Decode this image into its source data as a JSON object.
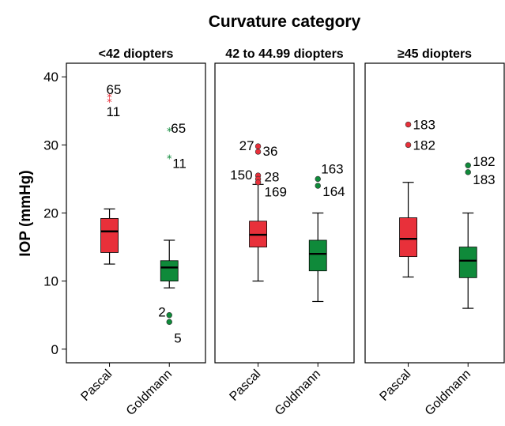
{
  "chart_data": {
    "type": "boxplot",
    "title": "Curvature category",
    "ylabel": "IOP (mmHg)",
    "ylim": [
      -2,
      42
    ],
    "yticks": [
      0,
      10,
      20,
      30,
      40
    ],
    "categories": [
      "Pascal",
      "Goldmann"
    ],
    "colors": {
      "Pascal": "#e8303a",
      "Goldmann": "#0f8a3a"
    },
    "grid": false,
    "panels": [
      {
        "label": "<42 diopters",
        "boxes": [
          {
            "category": "Pascal",
            "whisker_low": 12.5,
            "q1": 14.2,
            "median": 17.3,
            "q3": 19.2,
            "whisker_high": 20.6,
            "outliers": [
              {
                "value": 37.0,
                "label": "65",
                "marker": "star"
              },
              {
                "value": 36.3,
                "label": "11",
                "marker": "star"
              }
            ]
          },
          {
            "category": "Goldmann",
            "whisker_low": 9.0,
            "q1": 10.0,
            "median": 12.0,
            "q3": 13.0,
            "whisker_high": 16.0,
            "outliers": [
              {
                "value": 32.0,
                "label": "65",
                "marker": "star"
              },
              {
                "value": 28.0,
                "label": "11",
                "marker": "star"
              },
              {
                "value": 5.0,
                "label": "2",
                "marker": "circle"
              },
              {
                "value": 4.0,
                "label": "5",
                "marker": "circle"
              }
            ]
          }
        ]
      },
      {
        "label": "42 to 44.99 diopters",
        "boxes": [
          {
            "category": "Pascal",
            "whisker_low": 10.0,
            "q1": 15.0,
            "median": 16.8,
            "q3": 18.8,
            "whisker_high": 24.2,
            "outliers": [
              {
                "value": 29.8,
                "label": "27",
                "marker": "circle"
              },
              {
                "value": 29.0,
                "label": "36",
                "marker": "circle"
              },
              {
                "value": 25.5,
                "label": "150",
                "marker": "circle"
              },
              {
                "value": 25.0,
                "label": "28",
                "marker": "circle"
              },
              {
                "value": 24.5,
                "label": "169",
                "marker": "circle"
              }
            ]
          },
          {
            "category": "Goldmann",
            "whisker_low": 7.0,
            "q1": 11.5,
            "median": 14.0,
            "q3": 16.0,
            "whisker_high": 20.0,
            "outliers": [
              {
                "value": 25.0,
                "label": "163",
                "marker": "circle"
              },
              {
                "value": 24.0,
                "label": "164",
                "marker": "circle"
              }
            ]
          }
        ]
      },
      {
        "label": "≥45 diopters",
        "boxes": [
          {
            "category": "Pascal",
            "whisker_low": 10.6,
            "q1": 13.6,
            "median": 16.2,
            "q3": 19.3,
            "whisker_high": 24.5,
            "outliers": [
              {
                "value": 33.0,
                "label": "183",
                "marker": "circle"
              },
              {
                "value": 30.0,
                "label": "182",
                "marker": "circle"
              }
            ]
          },
          {
            "category": "Goldmann",
            "whisker_low": 6.0,
            "q1": 10.5,
            "median": 13.0,
            "q3": 15.0,
            "whisker_high": 20.0,
            "outliers": [
              {
                "value": 27.0,
                "label": "182",
                "marker": "circle"
              },
              {
                "value": 26.0,
                "label": "183",
                "marker": "circle"
              }
            ]
          }
        ]
      }
    ]
  }
}
